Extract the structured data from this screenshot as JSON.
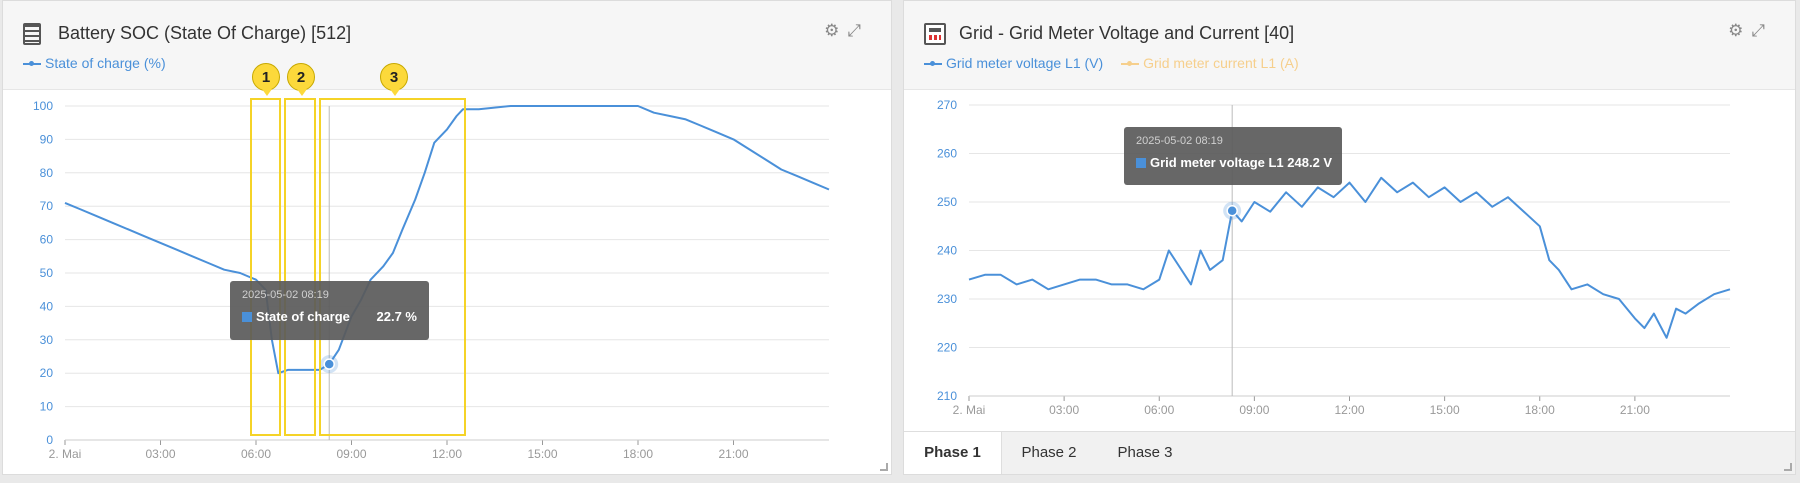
{
  "widgets": [
    {
      "title": "Battery SOC (State Of Charge) [512]",
      "legend": [
        {
          "label": "State of charge (%)",
          "color": "#4a90d9"
        }
      ],
      "tooltip": {
        "date": "2025-05-02 08:19",
        "series": "State of charge",
        "value": "22.7 %"
      },
      "annotations": [
        "1",
        "2",
        "3"
      ]
    },
    {
      "title": "Grid - Grid Meter Voltage and Current [40]",
      "legend": [
        {
          "label": "Grid meter voltage L1 (V)",
          "color": "#4a90d9"
        },
        {
          "label": "Grid meter current L1 (A)",
          "color": "#f6cf8c"
        }
      ],
      "tooltip": {
        "date": "2025-05-02 08:19",
        "series": "Grid meter voltage L1 248.2 V"
      },
      "tabs": [
        "Phase 1",
        "Phase 2",
        "Phase 3"
      ]
    }
  ],
  "chart_data": [
    {
      "type": "line",
      "x_ticks": [
        "2. Mai",
        "03:00",
        "06:00",
        "09:00",
        "12:00",
        "15:00",
        "18:00",
        "21:00"
      ],
      "x_range_hours": [
        0,
        24
      ],
      "ylim": [
        0,
        100
      ],
      "y_ticks": [
        0,
        10,
        20,
        30,
        40,
        50,
        60,
        70,
        80,
        90,
        100
      ],
      "series": [
        {
          "color": "#4a90d9",
          "x_hours": [
            0,
            0.5,
            1,
            1.5,
            2,
            2.5,
            3,
            3.5,
            4,
            4.5,
            5,
            5.5,
            6,
            6.3,
            6.5,
            6.7,
            7,
            7.5,
            8,
            8.3,
            8.6,
            9,
            9.3,
            9.6,
            10,
            10.3,
            10.6,
            11,
            11.3,
            11.6,
            12,
            12.3,
            12.5,
            13,
            14,
            15,
            16,
            17,
            18,
            18.5,
            19,
            19.5,
            20,
            20.5,
            21,
            21.5,
            22,
            22.5,
            23,
            23.5,
            24
          ],
          "values": [
            71,
            69,
            67,
            65,
            63,
            61,
            59,
            57,
            55,
            53,
            51,
            50,
            48,
            45,
            30,
            20,
            21,
            21,
            21,
            22.7,
            27,
            37,
            42,
            48,
            52,
            56,
            63,
            72,
            80,
            89,
            93,
            97,
            99,
            99,
            100,
            100,
            100,
            100,
            100,
            98,
            97,
            96,
            94,
            92,
            90,
            87,
            84,
            81,
            79,
            77,
            75
          ]
        }
      ]
    },
    {
      "type": "line",
      "x_ticks": [
        "2. Mai",
        "03:00",
        "06:00",
        "09:00",
        "12:00",
        "15:00",
        "18:00",
        "21:00"
      ],
      "x_range_hours": [
        0,
        24
      ],
      "ylim": [
        210,
        270
      ],
      "y_ticks": [
        210,
        220,
        230,
        240,
        250,
        260,
        270
      ],
      "series": [
        {
          "color": "#4a90d9",
          "x_hours": [
            0,
            0.5,
            1,
            1.5,
            2,
            2.5,
            3,
            3.5,
            4,
            4.5,
            5,
            5.5,
            6,
            6.3,
            6.6,
            7,
            7.3,
            7.6,
            8,
            8.3,
            8.6,
            9,
            9.5,
            10,
            10.5,
            11,
            11.5,
            12,
            12.5,
            13,
            13.5,
            14,
            14.5,
            15,
            15.5,
            16,
            16.5,
            17,
            17.5,
            18,
            18.3,
            18.6,
            19,
            19.5,
            20,
            20.5,
            21,
            21.3,
            21.6,
            22,
            22.3,
            22.6,
            23,
            23.5,
            24
          ],
          "values": [
            234,
            235,
            235,
            233,
            234,
            232,
            233,
            234,
            234,
            233,
            233,
            232,
            234,
            240,
            237,
            233,
            240,
            236,
            238,
            248.2,
            246,
            250,
            248,
            252,
            249,
            253,
            251,
            254,
            250,
            255,
            252,
            254,
            251,
            253,
            250,
            252,
            249,
            251,
            248,
            245,
            238,
            236,
            232,
            233,
            231,
            230,
            226,
            224,
            227,
            222,
            228,
            227,
            229,
            231,
            232
          ]
        }
      ]
    }
  ]
}
